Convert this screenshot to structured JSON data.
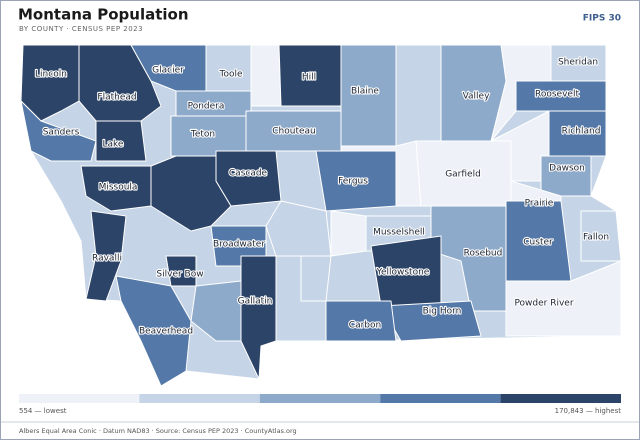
{
  "header": {
    "title": "Montana Population",
    "subtitle": "BY COUNTY · CENSUS PEP 2023",
    "badge": "FIPS 30"
  },
  "map": {
    "counties": [
      {
        "name": "Lincoln",
        "color": "#2c4468"
      },
      {
        "name": "Flathead",
        "color": "#2c4468"
      },
      {
        "name": "Glacier",
        "color": "#5478a8"
      },
      {
        "name": "Toole",
        "color": "#c5d4e6"
      },
      {
        "name": "Hill",
        "color": "#2c4468"
      },
      {
        "name": "Blaine",
        "color": "#8eaacb"
      },
      {
        "name": "Valley",
        "color": "#8eaacb"
      },
      {
        "name": "Sheridan",
        "color": "#c5d4e6"
      },
      {
        "name": "Roosevelt",
        "color": "#5478a8"
      },
      {
        "name": "Richland",
        "color": "#5478a8"
      },
      {
        "name": "Pondera",
        "color": "#8eaacb"
      },
      {
        "name": "Teton",
        "color": "#8eaacb"
      },
      {
        "name": "Chouteau",
        "color": "#8eaacb"
      },
      {
        "name": "Sanders",
        "color": "#5478a8"
      },
      {
        "name": "Lake",
        "color": "#2c4468"
      },
      {
        "name": "Missoula",
        "color": "#2c4468"
      },
      {
        "name": "Cascade",
        "color": "#2c4468"
      },
      {
        "name": "Fergus",
        "color": "#5478a8"
      },
      {
        "name": "Garfield",
        "color": "#eef2f8"
      },
      {
        "name": "Dawson",
        "color": "#8eaacb"
      },
      {
        "name": "Prairie",
        "color": "#eef2f8"
      },
      {
        "name": "Musselshell",
        "color": "#c5d4e6"
      },
      {
        "name": "Rosebud",
        "color": "#8eaacb"
      },
      {
        "name": "Custer",
        "color": "#5478a8"
      },
      {
        "name": "Fallon",
        "color": "#c5d4e6"
      },
      {
        "name": "Broadwater",
        "color": "#5478a8"
      },
      {
        "name": "Ravalli",
        "color": "#2c4468"
      },
      {
        "name": "Silver Bow",
        "color": "#2c4468"
      },
      {
        "name": "Yellowstone",
        "color": "#2c4468"
      },
      {
        "name": "Gallatin",
        "color": "#2c4468"
      },
      {
        "name": "Big Horn",
        "color": "#5478a8"
      },
      {
        "name": "Carbon",
        "color": "#5478a8"
      },
      {
        "name": "Beaverhead",
        "color": "#5478a8"
      },
      {
        "name": "Powder River",
        "color": "#eef2f8"
      }
    ]
  },
  "legend": {
    "colors": [
      "#eef2f8",
      "#c5d4e6",
      "#8eaacb",
      "#5478a8",
      "#2c4468"
    ],
    "min_label": "554 — lowest",
    "max_label": "170,843 — highest"
  },
  "footer": "Albers Equal Area Conic · Datum NAD83 · Source: Census PEP 2023 · CountyAtlas.org"
}
